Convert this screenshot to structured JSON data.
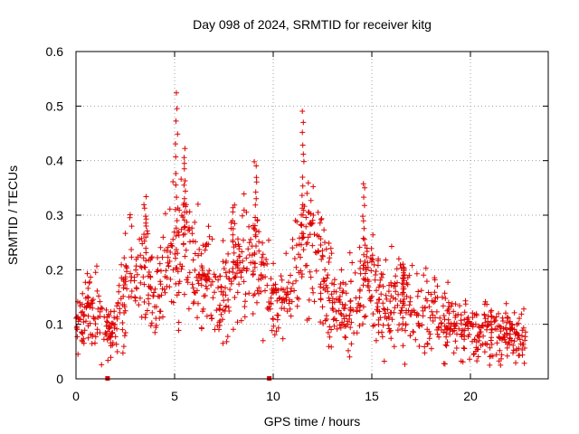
{
  "chart_data": {
    "type": "scatter",
    "title": "Day 098 of 2024, SRMTID for receiver kitg",
    "xlabel": "GPS time / hours",
    "ylabel": "SRMTID / TECUs",
    "xlim": [
      0,
      24
    ],
    "ylim": [
      0,
      0.6
    ],
    "x_ticks": [
      0,
      5,
      10,
      15,
      20
    ],
    "x_tick_labels": [
      "0",
      "5",
      "10",
      "15",
      "20"
    ],
    "y_ticks": [
      0,
      0.1,
      0.2,
      0.3,
      0.4,
      0.5,
      0.6
    ],
    "y_tick_labels": [
      "0",
      "0.1",
      "0.2",
      "0.3",
      "0.4",
      "0.5",
      "0.6"
    ],
    "grid": true,
    "marker": "plus",
    "color": "#e00000",
    "data_end_hour": 22.8,
    "data_gap_markers_x": [
      1.6,
      9.8
    ],
    "trend": {
      "hours": [
        0,
        0.5,
        1,
        1.5,
        2,
        2.3,
        2.7,
        3,
        3.5,
        4,
        4.5,
        5,
        5.5,
        6,
        6.5,
        7,
        7.5,
        8,
        8.5,
        9,
        9.5,
        10,
        10.5,
        11,
        11.5,
        12,
        12.5,
        13,
        13.5,
        14,
        14.5,
        15,
        15.5,
        16,
        17,
        18,
        19,
        20,
        21,
        22,
        22.8
      ],
      "srmtid": [
        0.11,
        0.12,
        0.12,
        0.085,
        0.1,
        0.13,
        0.19,
        0.2,
        0.2,
        0.15,
        0.19,
        0.21,
        0.25,
        0.2,
        0.19,
        0.15,
        0.14,
        0.2,
        0.22,
        0.22,
        0.19,
        0.14,
        0.14,
        0.18,
        0.24,
        0.25,
        0.2,
        0.14,
        0.13,
        0.14,
        0.17,
        0.19,
        0.13,
        0.14,
        0.13,
        0.12,
        0.1,
        0.09,
        0.085,
        0.08,
        0.07
      ]
    },
    "peaks": [
      {
        "hour": 3.5,
        "value": 0.33
      },
      {
        "hour": 5.1,
        "value": 0.52
      },
      {
        "hour": 5.5,
        "value": 0.42
      },
      {
        "hour": 8.0,
        "value": 0.32
      },
      {
        "hour": 9.1,
        "value": 0.4
      },
      {
        "hour": 11.5,
        "value": 0.49
      },
      {
        "hour": 14.6,
        "value": 0.36
      },
      {
        "hour": 16.6,
        "value": 0.2
      }
    ]
  }
}
